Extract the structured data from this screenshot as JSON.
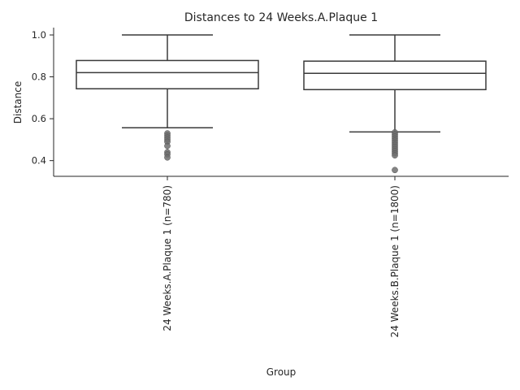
{
  "chart_data": {
    "type": "box",
    "title": "Distances to 24 Weeks.A.Plaque 1",
    "xlabel": "Group",
    "ylabel": "Distance",
    "ylim": [
      0.325,
      1.035
    ],
    "yticks": [
      0.4,
      0.6,
      0.8,
      1.0
    ],
    "ytick_labels": [
      "0.4",
      "0.6",
      "0.8",
      "1.0"
    ],
    "grid": false,
    "legend": "none",
    "colors": {
      "box_edge": "#3a3a3a",
      "axis": "#262626",
      "outlier": "#6e6e6e"
    },
    "groups": [
      {
        "label": "24 Weeks.A.Plaque 1 (n=780)",
        "whisker_low": 0.557,
        "q1": 0.743,
        "median": 0.82,
        "q3": 0.878,
        "whisker_high": 1.0,
        "outliers": [
          0.53,
          0.52,
          0.51,
          0.5,
          0.49,
          0.47,
          0.44,
          0.43,
          0.415
        ]
      },
      {
        "label": "24 Weeks.B.Plaque 1 (n=1800)",
        "whisker_low": 0.537,
        "q1": 0.739,
        "median": 0.817,
        "q3": 0.875,
        "whisker_high": 1.0,
        "outliers": [
          0.535,
          0.525,
          0.515,
          0.505,
          0.495,
          0.485,
          0.475,
          0.465,
          0.455,
          0.445,
          0.435,
          0.425,
          0.355
        ]
      }
    ]
  }
}
